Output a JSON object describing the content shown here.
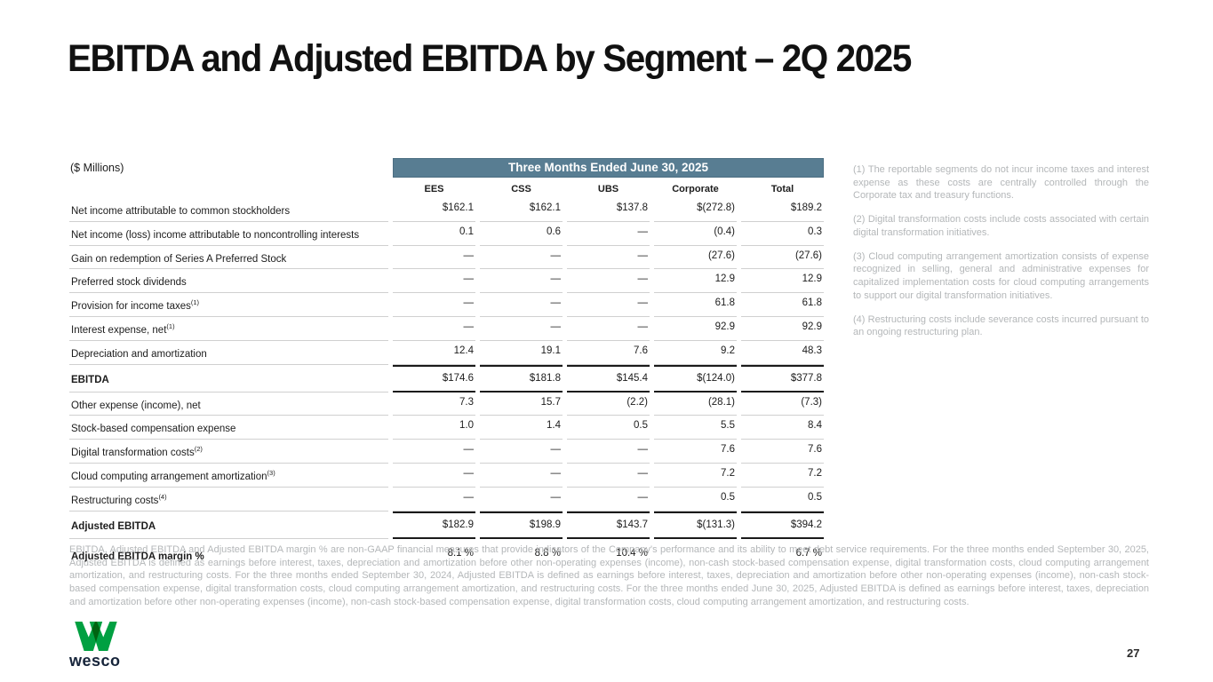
{
  "slide": {
    "title": "EBITDA and Adjusted EBITDA by Segment – 2Q 2025",
    "page_number": "27"
  },
  "table": {
    "units_label": "($ Millions)",
    "period_header": "Three Months Ended June 30, 2025",
    "columns": [
      "EES",
      "CSS",
      "UBS",
      "Corporate",
      "Total"
    ],
    "rows": [
      {
        "label": "Net income attributable to common stockholders",
        "sup": "",
        "style": "normal",
        "values": [
          "$162.1",
          "$162.1",
          "$137.8",
          "$(272.8)",
          "$189.2"
        ]
      },
      {
        "label": "Net income (loss) income attributable to noncontrolling interests",
        "sup": "",
        "style": "normal",
        "values": [
          "0.1",
          "0.6",
          "—",
          "(0.4)",
          "0.3"
        ]
      },
      {
        "label": "Gain on redemption of Series A Preferred Stock",
        "sup": "",
        "style": "normal",
        "values": [
          "—",
          "—",
          "—",
          "(27.6)",
          "(27.6)"
        ]
      },
      {
        "label": "Preferred stock dividends",
        "sup": "",
        "style": "normal",
        "values": [
          "—",
          "—",
          "—",
          "12.9",
          "12.9"
        ]
      },
      {
        "label": "Provision for income taxes",
        "sup": "(1)",
        "style": "normal",
        "values": [
          "—",
          "—",
          "—",
          "61.8",
          "61.8"
        ]
      },
      {
        "label": "Interest expense, net",
        "sup": "(1)",
        "style": "normal",
        "values": [
          "—",
          "—",
          "—",
          "92.9",
          "92.9"
        ]
      },
      {
        "label": "Depreciation and amortization",
        "sup": "",
        "style": "normal",
        "values": [
          "12.4",
          "19.1",
          "7.6",
          "9.2",
          "48.3"
        ]
      },
      {
        "label": "EBITDA",
        "sup": "",
        "style": "total",
        "values": [
          "$174.6",
          "$181.8",
          "$145.4",
          "$(124.0)",
          "$377.8"
        ]
      },
      {
        "label": "Other expense (income), net",
        "sup": "",
        "style": "normal",
        "values": [
          "7.3",
          "15.7",
          "(2.2)",
          "(28.1)",
          "(7.3)"
        ]
      },
      {
        "label": "Stock-based compensation expense",
        "sup": "",
        "style": "normal",
        "values": [
          "1.0",
          "1.4",
          "0.5",
          "5.5",
          "8.4"
        ]
      },
      {
        "label": "Digital transformation costs",
        "sup": "(2)",
        "style": "normal",
        "values": [
          "—",
          "—",
          "—",
          "7.6",
          "7.6"
        ]
      },
      {
        "label": "Cloud computing arrangement amortization",
        "sup": "(3)",
        "style": "normal",
        "values": [
          "—",
          "—",
          "—",
          "7.2",
          "7.2"
        ]
      },
      {
        "label": "Restructuring costs",
        "sup": "(4)",
        "style": "normal",
        "values": [
          "—",
          "—",
          "—",
          "0.5",
          "0.5"
        ]
      },
      {
        "label": "Adjusted EBITDA",
        "sup": "",
        "style": "total",
        "values": [
          "$182.9",
          "$198.9",
          "$143.7",
          "$(131.3)",
          "$394.2"
        ]
      },
      {
        "label": "Adjusted EBITDA margin %",
        "sup": "",
        "style": "margin",
        "values": [
          "8.1 %",
          "8.8 %",
          "10.4 %",
          "",
          "6.7 %"
        ]
      }
    ]
  },
  "footnotes": [
    "(1)  The reportable segments do not incur income taxes and interest expense as these costs are centrally controlled through the Corporate tax and treasury functions.",
    "(2)  Digital transformation costs include costs associated with certain digital transformation initiatives.",
    "(3)  Cloud computing arrangement amortization consists of expense recognized in selling, general and administrative expenses for capitalized implementation costs for cloud computing arrangements to support our digital transformation initiatives.",
    "(4) Restructuring costs include severance costs incurred pursuant to an ongoing restructuring plan."
  ],
  "disclaimer": "EBITDA, Adjusted EBITDA and Adjusted EBITDA margin % are non-GAAP financial measures that provide indicators of the Company's performance and its ability to meet debt service requirements. For the three months ended September 30, 2025, Adjusted EBITDA is defined as earnings before interest, taxes, depreciation and amortization before other non-operating expenses (income), non-cash stock-based compensation expense, digital transformation costs, cloud computing arrangement amortization, and restructuring costs. For the three months ended September 30, 2024, Adjusted EBITDA is defined as earnings before interest, taxes, depreciation and amortization before other non-operating expenses (income), non-cash stock-based compensation expense, digital transformation costs, cloud computing arrangement amortization, and restructuring costs. For the three months ended June 30, 2025, Adjusted EBITDA is defined as earnings before interest, taxes, depreciation and amortization before other non-operating expenses (income), non-cash stock-based compensation expense, digital transformation costs, cloud computing arrangement amortization, and restructuring costs.",
  "logo": {
    "brand": "wesco"
  },
  "colors": {
    "banner": "#587d92",
    "logo_green": "#00a041",
    "logo_navy": "#16243a",
    "muted_text": "#b4b7b9",
    "rule_thin": "#d0d0d0",
    "rule_thick": "#1a1a1a"
  }
}
